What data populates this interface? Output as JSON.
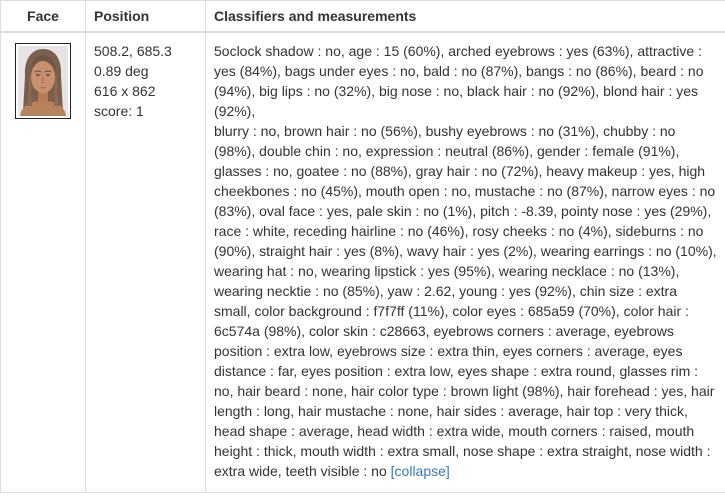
{
  "table": {
    "headers": {
      "face": "Face",
      "position": "Position",
      "classifiers": "Classifiers and measurements"
    },
    "row": {
      "face_image": {
        "semantic": "face-thumbnail",
        "skin_color": "#c28663",
        "hair_color": "#6c574a",
        "background_color": "#f7f7ff"
      },
      "position_lines": [
        "508.2, 685.3",
        "0.89 deg",
        "616 x 862",
        "score: 1"
      ],
      "classifiers_text": "5oclock shadow : no, age : 15 (60%), arched eyebrows : yes (63%), attractive : yes (84%), bags under eyes : no, bald : no (87%), bangs : no (86%), beard : no (94%), big lips : no (32%), big nose : no, black hair : no (92%), blond hair : yes (92%),\nblurry : no, brown hair : no (56%), bushy eyebrows : no (31%), chubby : no (98%), double chin : no, expression : neutral (86%), gender : female (91%), glasses : no, goatee : no (88%), gray hair : no (72%), heavy makeup : yes, high cheekbones : no (45%), mouth open : no, mustache : no (87%), narrow eyes : no (83%), oval face : yes, pale skin : no (1%), pitch : -8.39, pointy nose : yes (29%), race : white, receding hairline : no (46%), rosy cheeks : no (4%), sideburns : no (90%), straight hair : yes (8%), wavy hair : yes (2%), wearing earrings : no (10%), wearing hat : no, wearing lipstick : yes (95%), wearing necklace : no (13%), wearing necktie : no (85%), yaw : 2.62, young : yes (92%), chin size : extra small, color background : f7f7ff (11%), color eyes : 685a59 (70%), color hair : 6c574a (98%), color skin : c28663, eyebrows corners : average, eyebrows position : extra low, eyebrows size : extra thin, eyes corners : average, eyes distance : far, eyes position : extra low, eyes shape : extra round, glasses rim : no, hair beard : none, hair color type : brown light (98%), hair forehead : yes, hair length : long, hair mustache : none, hair sides : average, hair top : very thick, head shape : average, head width : extra wide, mouth corners : raised, mouth height : thick, mouth width : extra small, nose shape : extra straight, nose width : extra wide, teeth visible : no",
      "collapse_label": "[collapse]"
    }
  },
  "colors": {
    "link": "#337ab7",
    "border": "#dddddd",
    "text": "#333333"
  }
}
